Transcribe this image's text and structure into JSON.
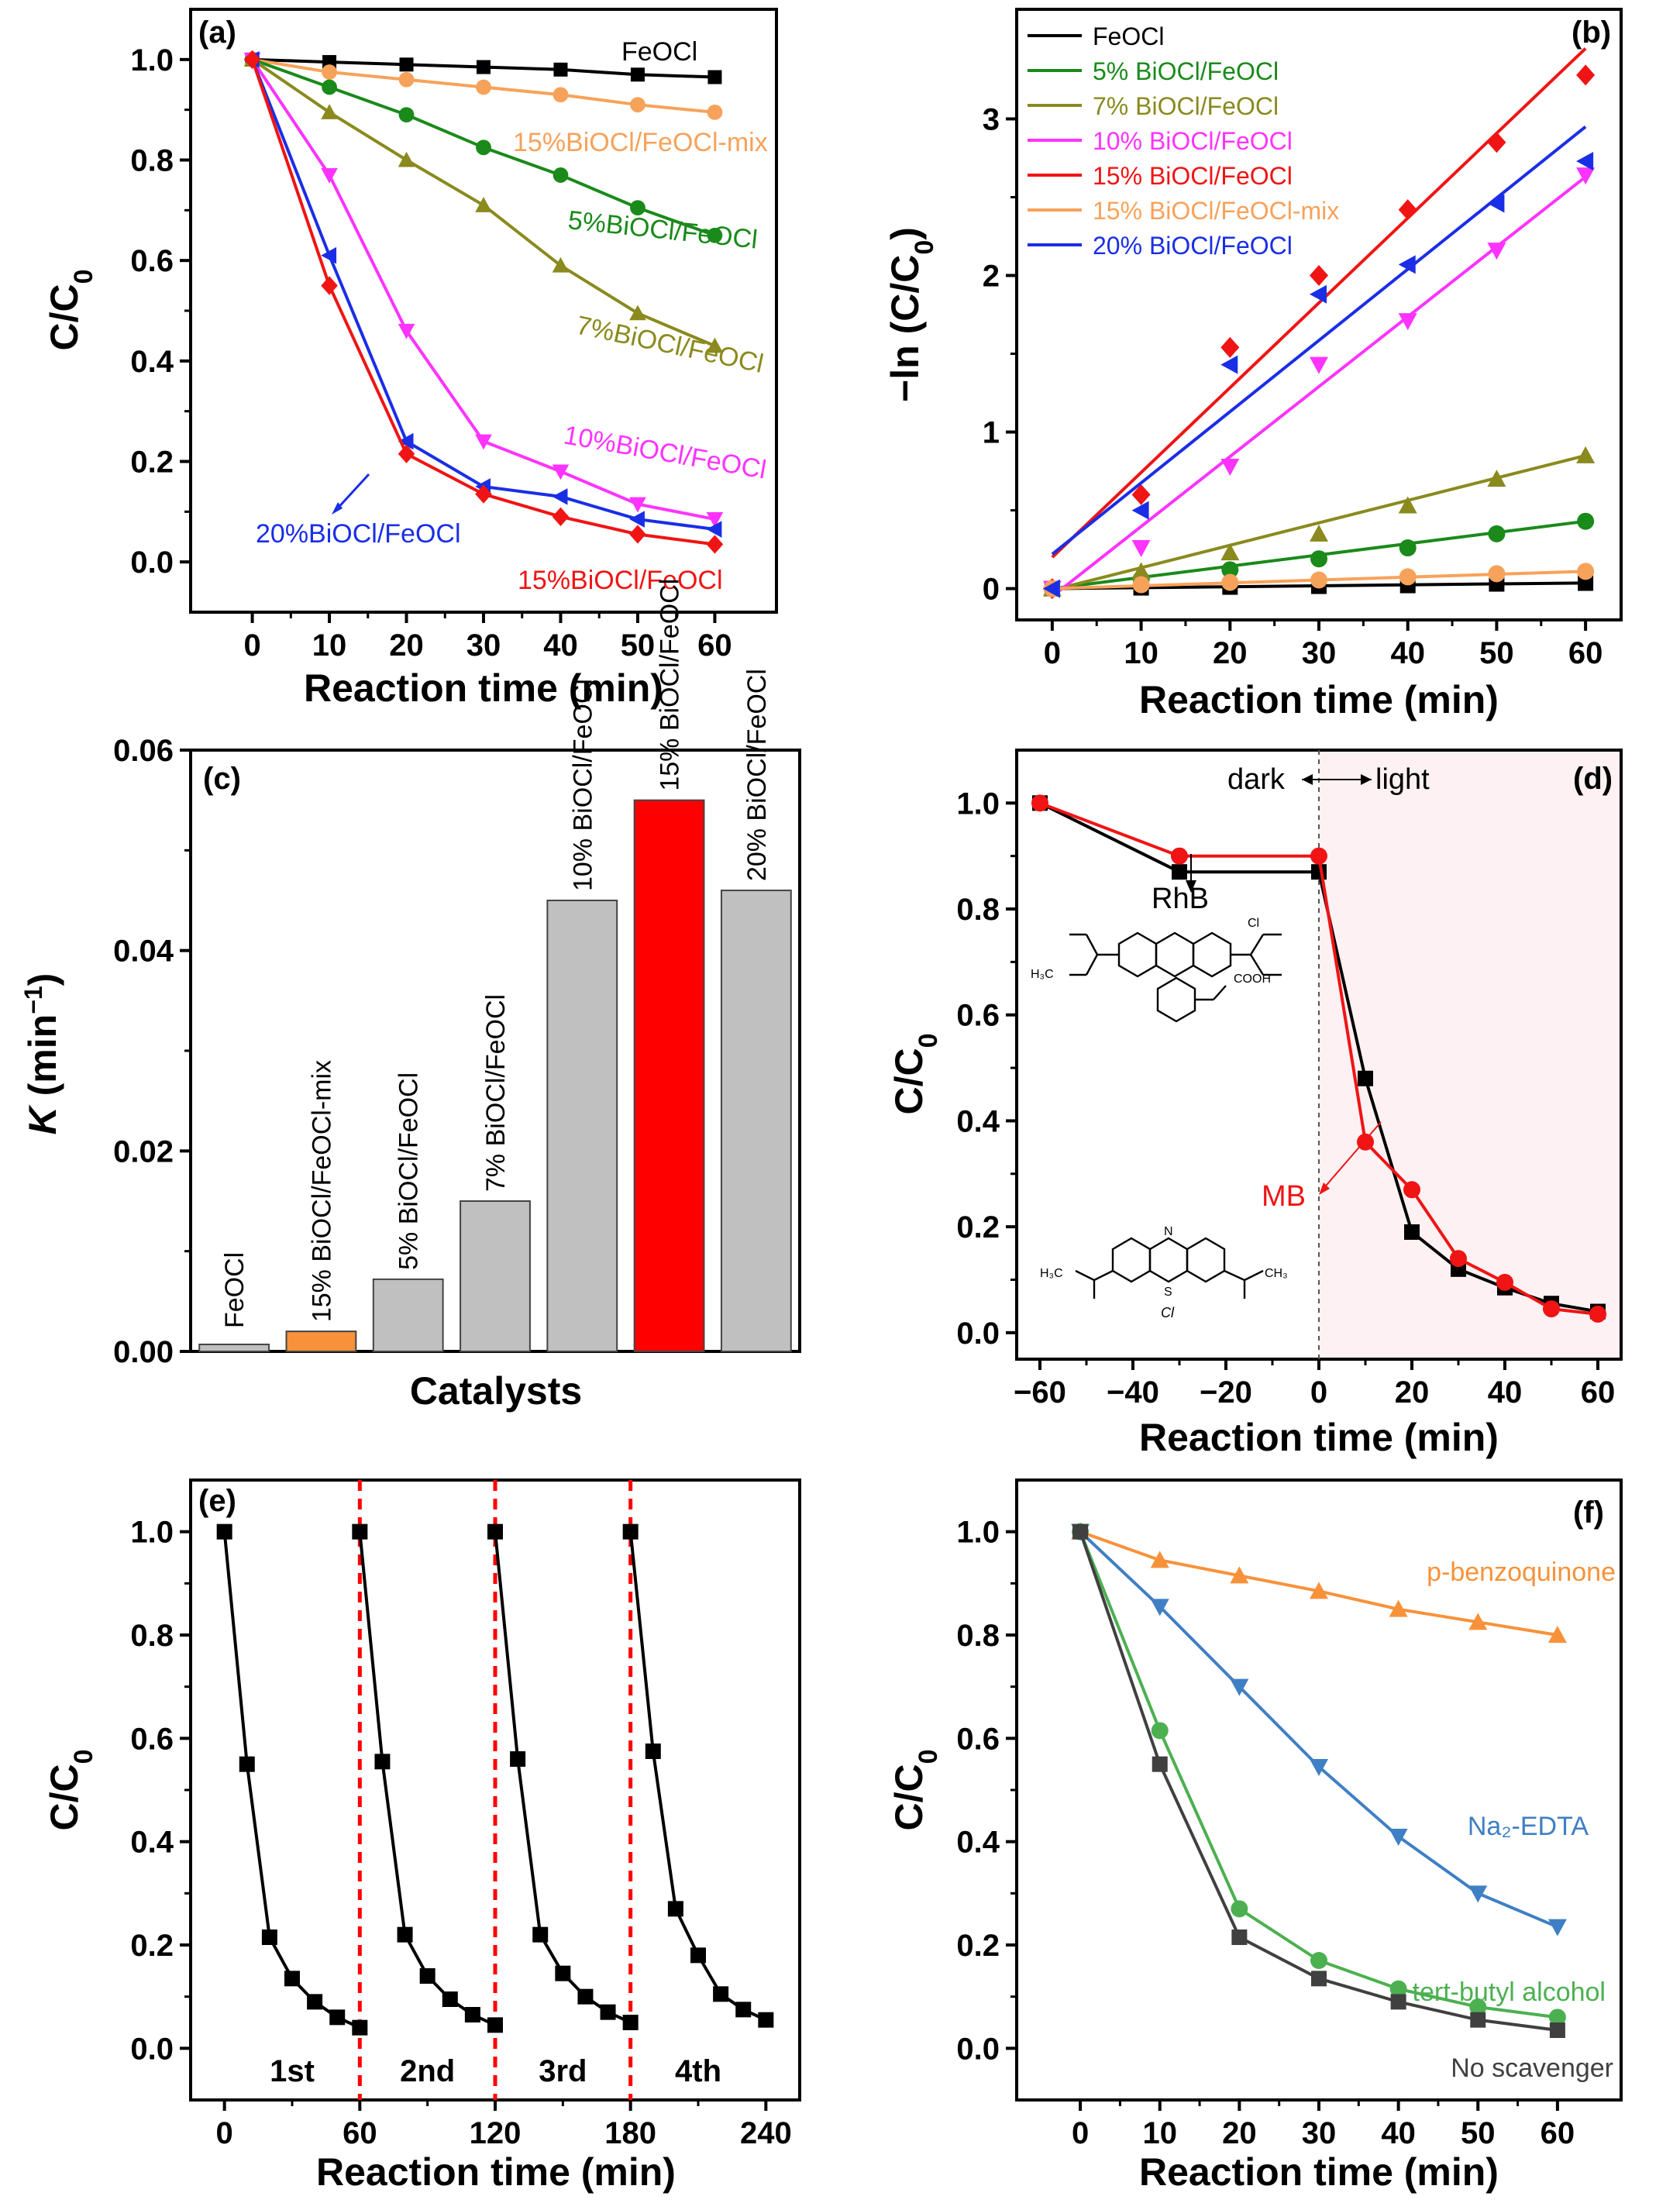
{
  "panels": {
    "a": {
      "letter": "(a)",
      "chart_data": {
        "type": "line",
        "xlabel": "Reaction time (min)",
        "ylabel": "C/C0",
        "xlim": [
          -8,
          68
        ],
        "ylim": [
          -0.1,
          1.1
        ],
        "xticks": [
          0,
          10,
          20,
          30,
          40,
          50,
          60
        ],
        "yticks": [
          0.0,
          0.2,
          0.4,
          0.6,
          0.8,
          1.0
        ],
        "x": [
          0,
          10,
          20,
          30,
          40,
          50,
          60
        ],
        "series": [
          {
            "name": "FeOCl",
            "label": "FeOCl",
            "color": "#000000",
            "marker": "square",
            "values": [
              1.0,
              0.995,
              0.99,
              0.985,
              0.98,
              0.97,
              0.965
            ]
          },
          {
            "name": "15%BiOCl/FeOCl-mix",
            "label": "15%BiOCl/FeOCl-mix",
            "color": "#f7a25a",
            "marker": "circle",
            "values": [
              1.0,
              0.975,
              0.96,
              0.945,
              0.93,
              0.91,
              0.895
            ]
          },
          {
            "name": "5%BiOCl/FeOCl",
            "label": "5%BiOCl/FeOCl",
            "color": "#1a8a1a",
            "marker": "circle",
            "values": [
              1.0,
              0.945,
              0.89,
              0.825,
              0.77,
              0.705,
              0.65
            ]
          },
          {
            "name": "7%BiOCl/FeOCl",
            "label": "7%BiOCl/FeOCl",
            "color": "#8a8a1e",
            "marker": "triangle-up",
            "values": [
              1.0,
              0.895,
              0.8,
              0.71,
              0.59,
              0.495,
              0.43
            ]
          },
          {
            "name": "10%BiOCl/FeOCl",
            "label": "10%BiOCl/FeOCl",
            "color": "#ff33ff",
            "marker": "triangle-down",
            "values": [
              1.0,
              0.77,
              0.46,
              0.24,
              0.18,
              0.115,
              0.085
            ]
          },
          {
            "name": "20%BiOCl/FeOCl",
            "label": "20%BiOCl/FeOCl",
            "color": "#1a2ee6",
            "marker": "triangle-left",
            "values": [
              1.0,
              0.61,
              0.24,
              0.15,
              0.13,
              0.085,
              0.065
            ]
          },
          {
            "name": "15%BiOCl/FeOCl",
            "label": "15%BiOCl/FeOCl",
            "color": "#f01414",
            "marker": "diamond",
            "values": [
              1.0,
              0.55,
              0.215,
              0.135,
              0.09,
              0.055,
              0.035
            ]
          }
        ]
      }
    },
    "b": {
      "letter": "(b)",
      "chart_data": {
        "type": "scatter",
        "xlabel": "Reaction time (min)",
        "ylabel": "−ln (C/C0)",
        "xlim": [
          -4,
          64
        ],
        "ylim": [
          -0.2,
          3.7
        ],
        "xticks": [
          0,
          10,
          20,
          30,
          40,
          50,
          60
        ],
        "yticks": [
          0,
          1,
          2,
          3
        ],
        "x": [
          0,
          10,
          20,
          30,
          40,
          50,
          60
        ],
        "series": [
          {
            "name": "FeOCl",
            "color": "#000000",
            "marker": "square",
            "values": [
              0,
              0.005,
              0.01,
              0.015,
              0.02,
              0.03,
              0.035
            ],
            "fit": [
              0.0,
              0.036
            ]
          },
          {
            "name": "5% BiOCl/FeOCl",
            "color": "#1a8a1a",
            "marker": "circle",
            "values": [
              0,
              0.06,
              0.12,
              0.19,
              0.26,
              0.35,
              0.43
            ],
            "fit": [
              0.0,
              0.43
            ]
          },
          {
            "name": "7% BiOCl/FeOCl",
            "color": "#8a8a1e",
            "marker": "triangle-up",
            "values": [
              0,
              0.11,
              0.23,
              0.35,
              0.53,
              0.7,
              0.85
            ],
            "fit": [
              -0.01,
              0.85
            ]
          },
          {
            "name": "10% BiOCl/FeOCl",
            "color": "#ff33ff",
            "marker": "triangle-down",
            "values": [
              0,
              0.26,
              0.78,
              1.43,
              1.71,
              2.16,
              2.64
            ],
            "fit": [
              -0.05,
              2.63
            ]
          },
          {
            "name": "15% BiOCl/FeOCl",
            "color": "#f01414",
            "marker": "diamond",
            "values": [
              0,
              0.6,
              1.54,
              2.0,
              2.42,
              2.85,
              3.28
            ],
            "fit": [
              0.2,
              3.45
            ]
          },
          {
            "name": "15% BiOCl/FeOCl-mix",
            "color": "#f7a25a",
            "marker": "circle",
            "values": [
              0,
              0.025,
              0.04,
              0.055,
              0.075,
              0.095,
              0.11
            ],
            "fit": [
              0.0,
              0.11
            ]
          },
          {
            "name": "20% BiOCl/FeOCl",
            "color": "#1a2ee6",
            "marker": "triangle-left",
            "values": [
              0,
              0.5,
              1.43,
              1.88,
              2.07,
              2.46,
              2.73
            ],
            "fit": [
              0.22,
              2.95
            ]
          }
        ]
      }
    },
    "c": {
      "letter": "(c)",
      "chart_data": {
        "type": "bar",
        "xlabel": "Catalysts",
        "ylabel": "K (min⁻¹)",
        "ylabel_italic": "K",
        "ylabel_rest": " (min",
        "ylabel_sup": "−1",
        "ylabel_end": ")",
        "ylim": [
          0,
          0.06
        ],
        "yticks": [
          "0.00",
          "0.02",
          "0.04",
          "0.06"
        ],
        "categories": [
          "FeOCl",
          "15% BiOCl/FeOCl-mix",
          "5% BiOCl/FeOCl",
          "7% BiOCl/FeOCl",
          "10% BiOCl/FeOCl",
          "15% BiOCl/FeOCl",
          "20% BiOCl/FeOCl"
        ],
        "values": [
          0.0007,
          0.002,
          0.0072,
          0.015,
          0.045,
          0.055,
          0.046
        ],
        "colors": [
          "#c0c0c0",
          "#f7923a",
          "#c0c0c0",
          "#c0c0c0",
          "#c0c0c0",
          "#ff0000",
          "#c0c0c0"
        ]
      }
    },
    "d": {
      "letter": "(d)",
      "annot_dark": "dark",
      "annot_light": "light",
      "rhb_label": "RhB",
      "mb_label": "MB",
      "rhb_cl": "Cl",
      "rhb_cooh": "COOH",
      "rhb_h3c": "H₃C",
      "mb_n": "N",
      "mb_s": "S",
      "mb_cl": "Cl",
      "mb_ch3": "CH₃",
      "mb_h3c": "H₃C",
      "chart_data": {
        "type": "line",
        "xlabel": "Reaction time (min)",
        "ylabel": "C/C0",
        "xlim": [
          -65,
          65
        ],
        "ylim": [
          -0.05,
          1.1
        ],
        "xticks": [
          -60,
          -40,
          -20,
          0,
          20,
          40,
          60
        ],
        "xtick_labels": [
          "−60",
          "−40",
          "−20",
          "0",
          "20",
          "40",
          "60"
        ],
        "yticks": [
          0.0,
          0.2,
          0.4,
          0.6,
          0.8,
          1.0
        ],
        "light_region": [
          0,
          65
        ],
        "series": [
          {
            "name": "RhB",
            "color": "#000000",
            "marker": "square",
            "x": [
              -60,
              -30,
              0,
              10,
              20,
              30,
              40,
              50,
              60
            ],
            "values": [
              1.0,
              0.87,
              0.87,
              0.48,
              0.19,
              0.12,
              0.085,
              0.055,
              0.04
            ]
          },
          {
            "name": "MB",
            "color": "#f01414",
            "marker": "circle",
            "x": [
              -60,
              -30,
              0,
              10,
              20,
              30,
              40,
              50,
              60
            ],
            "values": [
              1.0,
              0.9,
              0.9,
              0.36,
              0.27,
              0.14,
              0.095,
              0.045,
              0.035
            ]
          }
        ]
      }
    },
    "e": {
      "letter": "(e)",
      "chart_data": {
        "type": "line",
        "xlabel": "Reaction time (min)",
        "ylabel": "C/C0",
        "xlim": [
          -15,
          255
        ],
        "ylim": [
          -0.1,
          1.1
        ],
        "xticks": [
          0,
          60,
          120,
          180,
          240
        ],
        "yticks": [
          0.0,
          0.2,
          0.4,
          0.6,
          0.8,
          1.0
        ],
        "dividers": [
          60,
          120,
          180
        ],
        "cycle_labels": [
          "1st",
          "2nd",
          "3rd",
          "4th"
        ],
        "cycle_label_x": [
          30,
          90,
          150,
          210
        ],
        "series": [
          {
            "name": "cycles",
            "color": "#000000",
            "marker": "square",
            "segments": [
              {
                "x": [
                  0,
                  10,
                  20,
                  30,
                  40,
                  50,
                  60
                ],
                "values": [
                  1.0,
                  0.55,
                  0.215,
                  0.135,
                  0.09,
                  0.06,
                  0.04
                ]
              },
              {
                "x": [
                  60,
                  70,
                  80,
                  90,
                  100,
                  110,
                  120
                ],
                "values": [
                  1.0,
                  0.555,
                  0.22,
                  0.14,
                  0.095,
                  0.065,
                  0.045
                ]
              },
              {
                "x": [
                  120,
                  130,
                  140,
                  150,
                  160,
                  170,
                  180
                ],
                "values": [
                  1.0,
                  0.56,
                  0.22,
                  0.145,
                  0.1,
                  0.07,
                  0.05
                ]
              },
              {
                "x": [
                  180,
                  190,
                  200,
                  210,
                  220,
                  230,
                  240
                ],
                "values": [
                  1.0,
                  0.575,
                  0.27,
                  0.18,
                  0.105,
                  0.075,
                  0.055
                ]
              }
            ]
          }
        ]
      }
    },
    "f": {
      "letter": "(f)",
      "chart_data": {
        "type": "line",
        "xlabel": "Reaction time (min)",
        "ylabel": "C/C0",
        "xlim": [
          -8,
          68
        ],
        "ylim": [
          -0.1,
          1.1
        ],
        "xticks": [
          0,
          10,
          20,
          30,
          40,
          50,
          60
        ],
        "yticks": [
          0.0,
          0.2,
          0.4,
          0.6,
          0.8,
          1.0
        ],
        "x": [
          0,
          10,
          20,
          30,
          40,
          50,
          60
        ],
        "series": [
          {
            "name": "p-benzoquinone",
            "label": "p-benzoquinone",
            "color": "#f7923a",
            "marker": "triangle-up",
            "values": [
              1.0,
              0.945,
              0.915,
              0.885,
              0.85,
              0.825,
              0.8
            ]
          },
          {
            "name": "Na2-EDTA",
            "label": "Na₂-EDTA",
            "color": "#3f7fc4",
            "marker": "triangle-down",
            "values": [
              1.0,
              0.855,
              0.7,
              0.545,
              0.41,
              0.3,
              0.235
            ]
          },
          {
            "name": "tert-butyl alcohol",
            "label": "tert-butyl alcohol",
            "color": "#4cb050",
            "marker": "circle",
            "values": [
              1.0,
              0.615,
              0.27,
              0.17,
              0.115,
              0.08,
              0.06
            ]
          },
          {
            "name": "No scavenger",
            "label": "No scavenger",
            "color": "#404040",
            "marker": "square",
            "values": [
              1.0,
              0.55,
              0.215,
              0.135,
              0.09,
              0.055,
              0.035
            ]
          }
        ]
      }
    }
  }
}
